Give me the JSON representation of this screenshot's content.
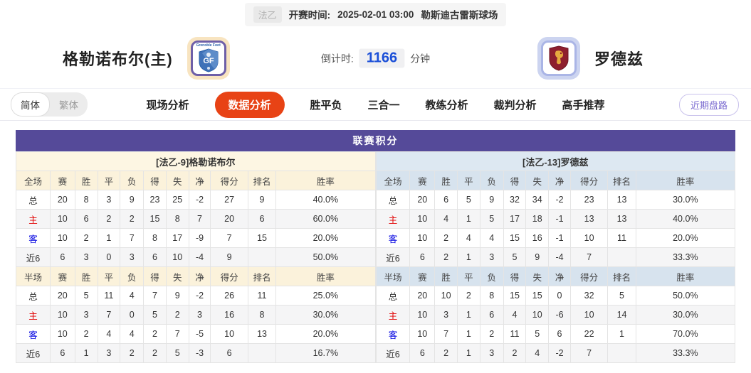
{
  "colors": {
    "accent_purple": "#554a99",
    "active_tab_orange": "#e84315",
    "countdown_blue": "#1b4fd8",
    "home_row_red": "#e10000",
    "away_row_blue": "#0000e1",
    "cream_header": "#fbf2db",
    "blue_header": "#d7e3ee"
  },
  "top_bar": {
    "league": "法乙",
    "kickoff_label": "开赛时间:",
    "kickoff_time": "2025-02-01 03:00",
    "venue": "勒斯迪古雷斯球场"
  },
  "match": {
    "home_name": "格勒诺布尔(主)",
    "away_name": "罗德兹",
    "home_logo_text": "GF",
    "home_logo_top": "Grenoble Foot",
    "countdown_label": "倒计时:",
    "countdown_value": "1166",
    "countdown_unit": "分钟"
  },
  "lang_toggle": {
    "simplified": "简体",
    "traditional": "繁体"
  },
  "tabs": [
    {
      "key": "live-analysis",
      "label": "现场分析",
      "active": false
    },
    {
      "key": "data-analysis",
      "label": "数据分析",
      "active": true
    },
    {
      "key": "win-draw-loss",
      "label": "胜平负",
      "active": false
    },
    {
      "key": "three-in-one",
      "label": "三合一",
      "active": false
    },
    {
      "key": "coach-analysis",
      "label": "教练分析",
      "active": false
    },
    {
      "key": "referee-analysis",
      "label": "裁判分析",
      "active": false
    },
    {
      "key": "expert-picks",
      "label": "高手推荐",
      "active": false
    }
  ],
  "recent_trend_button": "近期盘路",
  "league_table": {
    "section_title": "联赛积分",
    "columns_full": [
      "全场",
      "赛",
      "胜",
      "平",
      "负",
      "得",
      "失",
      "净",
      "得分",
      "排名",
      "胜率"
    ],
    "columns_half": [
      "半场",
      "赛",
      "胜",
      "平",
      "负",
      "得",
      "失",
      "净",
      "得分",
      "排名",
      "胜率"
    ],
    "teams": [
      {
        "title": "[法乙-9]格勒诺布尔",
        "theme": "cream",
        "full": [
          {
            "label": "总",
            "type": "total",
            "cells": [
              "20",
              "8",
              "3",
              "9",
              "23",
              "25",
              "-2",
              "27",
              "9",
              "40.0%"
            ]
          },
          {
            "label": "主",
            "type": "home",
            "cells": [
              "10",
              "6",
              "2",
              "2",
              "15",
              "8",
              "7",
              "20",
              "6",
              "60.0%"
            ]
          },
          {
            "label": "客",
            "type": "away",
            "cells": [
              "10",
              "2",
              "1",
              "7",
              "8",
              "17",
              "-9",
              "7",
              "15",
              "20.0%"
            ]
          },
          {
            "label": "近6",
            "type": "recent",
            "cells": [
              "6",
              "3",
              "0",
              "3",
              "6",
              "10",
              "-4",
              "9",
              "",
              "50.0%"
            ]
          }
        ],
        "half": [
          {
            "label": "总",
            "type": "total",
            "cells": [
              "20",
              "5",
              "11",
              "4",
              "7",
              "9",
              "-2",
              "26",
              "11",
              "25.0%"
            ]
          },
          {
            "label": "主",
            "type": "home",
            "cells": [
              "10",
              "3",
              "7",
              "0",
              "5",
              "2",
              "3",
              "16",
              "8",
              "30.0%"
            ]
          },
          {
            "label": "客",
            "type": "away",
            "cells": [
              "10",
              "2",
              "4",
              "4",
              "2",
              "7",
              "-5",
              "10",
              "13",
              "20.0%"
            ]
          },
          {
            "label": "近6",
            "type": "recent",
            "cells": [
              "6",
              "1",
              "3",
              "2",
              "2",
              "5",
              "-3",
              "6",
              "",
              "16.7%"
            ]
          }
        ]
      },
      {
        "title": "[法乙-13]罗德兹",
        "theme": "blue",
        "full": [
          {
            "label": "总",
            "type": "total",
            "cells": [
              "20",
              "6",
              "5",
              "9",
              "32",
              "34",
              "-2",
              "23",
              "13",
              "30.0%"
            ]
          },
          {
            "label": "主",
            "type": "home",
            "cells": [
              "10",
              "4",
              "1",
              "5",
              "17",
              "18",
              "-1",
              "13",
              "13",
              "40.0%"
            ]
          },
          {
            "label": "客",
            "type": "away",
            "cells": [
              "10",
              "2",
              "4",
              "4",
              "15",
              "16",
              "-1",
              "10",
              "11",
              "20.0%"
            ]
          },
          {
            "label": "近6",
            "type": "recent",
            "cells": [
              "6",
              "2",
              "1",
              "3",
              "5",
              "9",
              "-4",
              "7",
              "",
              "33.3%"
            ]
          }
        ],
        "half": [
          {
            "label": "总",
            "type": "total",
            "cells": [
              "20",
              "10",
              "2",
              "8",
              "15",
              "15",
              "0",
              "32",
              "5",
              "50.0%"
            ]
          },
          {
            "label": "主",
            "type": "home",
            "cells": [
              "10",
              "3",
              "1",
              "6",
              "4",
              "10",
              "-6",
              "10",
              "14",
              "30.0%"
            ]
          },
          {
            "label": "客",
            "type": "away",
            "cells": [
              "10",
              "7",
              "1",
              "2",
              "11",
              "5",
              "6",
              "22",
              "1",
              "70.0%"
            ]
          },
          {
            "label": "近6",
            "type": "recent",
            "cells": [
              "6",
              "2",
              "1",
              "3",
              "2",
              "4",
              "-2",
              "7",
              "",
              "33.3%"
            ]
          }
        ]
      }
    ]
  }
}
